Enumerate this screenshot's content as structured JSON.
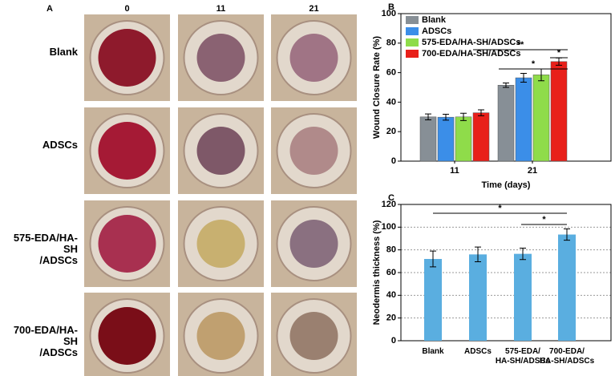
{
  "panel_a": {
    "label": "A",
    "columns": [
      "0",
      "11",
      "21"
    ],
    "rows": [
      "Blank",
      "ADSCs",
      "575-EDA/HA-SH\n/ADSCs",
      "700-EDA/HA-SH\n/ADSCs"
    ]
  },
  "chart_data": [
    {
      "type": "bar",
      "panel": "B",
      "xlabel": "Time (days)",
      "ylabel": "Wound Closure Rate (%)",
      "categories": [
        "11",
        "21"
      ],
      "series": [
        {
          "name": "Blank",
          "color": "#878f96",
          "values": [
            30,
            51.5
          ],
          "errors": [
            2,
            1.5
          ]
        },
        {
          "name": "ADSCs",
          "color": "#3b8ee8",
          "values": [
            29.8,
            56.5
          ],
          "errors": [
            2,
            3
          ]
        },
        {
          "name": "575-EDA/HA-SH/ADSCs",
          "color": "#8fdc4a",
          "values": [
            30,
            58.5
          ],
          "errors": [
            2.5,
            4
          ]
        },
        {
          "name": "700-EDA/HA-SH/ADSCs",
          "color": "#e8201a",
          "values": [
            32.8,
            67.5
          ],
          "errors": [
            2,
            2.5
          ]
        }
      ],
      "ylim": [
        0,
        100
      ],
      "yticks": [
        0,
        20,
        40,
        60,
        80,
        100
      ],
      "grid": false,
      "legend": "upper-left",
      "annotations": [
        "*",
        "**",
        "*"
      ]
    },
    {
      "type": "bar",
      "panel": "C",
      "ylabel": "Neodermis thickness (%)",
      "categories": [
        "Blank",
        "ADSCs",
        "575-EDA/\nHA-SH/ADSCs",
        "700-EDA/\nHA-SH/ADSCs"
      ],
      "color": "#5aaee0",
      "values": [
        72,
        76,
        76.5,
        93.5
      ],
      "errors": [
        7,
        6.5,
        5,
        5
      ],
      "ylim": [
        0,
        120
      ],
      "yticks": [
        0,
        20,
        40,
        60,
        80,
        100,
        120
      ],
      "grid": true,
      "annotations": [
        "*",
        "*"
      ]
    }
  ]
}
